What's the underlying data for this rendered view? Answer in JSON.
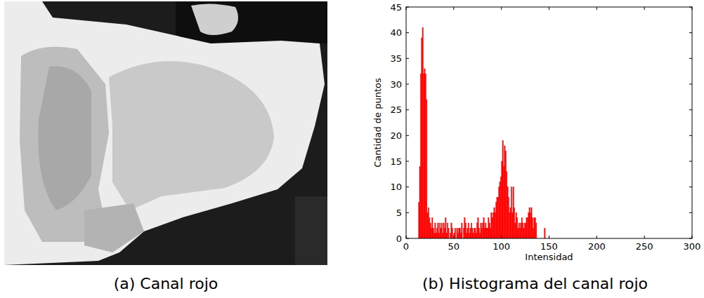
{
  "image": {
    "caption": "(a) Canal rojo"
  },
  "chart_data": {
    "type": "histogram",
    "title": "(b) Histograma del canal rojo",
    "x_label": "Intensidad",
    "y_label": "Cantidad de puntos",
    "color": "#ff0000",
    "xlim": [
      0,
      300
    ],
    "xticks": [
      0,
      50,
      100,
      150,
      200,
      250,
      300
    ],
    "ylim": [
      0,
      45
    ],
    "yticks": [
      0,
      5,
      10,
      15,
      20,
      25,
      30,
      35,
      40,
      45
    ],
    "grid": false,
    "bins": [
      12,
      13,
      14,
      15,
      16,
      17,
      18,
      19,
      20,
      21,
      22,
      23,
      24,
      25,
      26,
      27,
      28,
      29,
      30,
      31,
      32,
      33,
      34,
      35,
      36,
      37,
      38,
      39,
      40,
      41,
      42,
      43,
      44,
      45,
      46,
      47,
      48,
      49,
      50,
      51,
      52,
      53,
      54,
      55,
      56,
      57,
      58,
      59,
      60,
      61,
      62,
      63,
      64,
      65,
      66,
      67,
      68,
      69,
      70,
      71,
      72,
      73,
      74,
      75,
      76,
      77,
      78,
      79,
      80,
      81,
      82,
      83,
      84,
      85,
      86,
      87,
      88,
      89,
      90,
      91,
      92,
      93,
      94,
      95,
      96,
      97,
      98,
      99,
      100,
      101,
      102,
      103,
      104,
      105,
      106,
      107,
      108,
      109,
      110,
      111,
      112,
      113,
      114,
      115,
      116,
      117,
      118,
      119,
      120,
      121,
      122,
      123,
      124,
      125,
      126,
      127,
      128,
      129,
      130,
      131,
      132,
      133,
      134,
      135,
      136,
      137,
      138,
      139,
      140,
      141,
      142,
      143,
      144,
      145,
      146,
      147
    ],
    "values": [
      0,
      7,
      14,
      32,
      39,
      41,
      32,
      33,
      32,
      27,
      5,
      6,
      4,
      3,
      2,
      4,
      2,
      1,
      3,
      1,
      2,
      3,
      1,
      3,
      2,
      3,
      1,
      3,
      2,
      4,
      1,
      3,
      2,
      0,
      1,
      3,
      2,
      0,
      1,
      2,
      0,
      2,
      1,
      2,
      2,
      1,
      3,
      0,
      2,
      4,
      3,
      1,
      2,
      3,
      1,
      2,
      3,
      2,
      1,
      2,
      2,
      1,
      3,
      4,
      2,
      1,
      3,
      2,
      3,
      4,
      2,
      3,
      2,
      2,
      4,
      3,
      2,
      5,
      4,
      5,
      6,
      5,
      7,
      8,
      8,
      10,
      11,
      12,
      15,
      19,
      14,
      18,
      17,
      13,
      10,
      8,
      5,
      6,
      10,
      5,
      10,
      6,
      3,
      5,
      4,
      2,
      3,
      2,
      3,
      4,
      3,
      2,
      3,
      3,
      4,
      4,
      5,
      6,
      5,
      6,
      4,
      2,
      4,
      4,
      3,
      0,
      0,
      0,
      0,
      0,
      0,
      0,
      0,
      2,
      0
    ]
  }
}
